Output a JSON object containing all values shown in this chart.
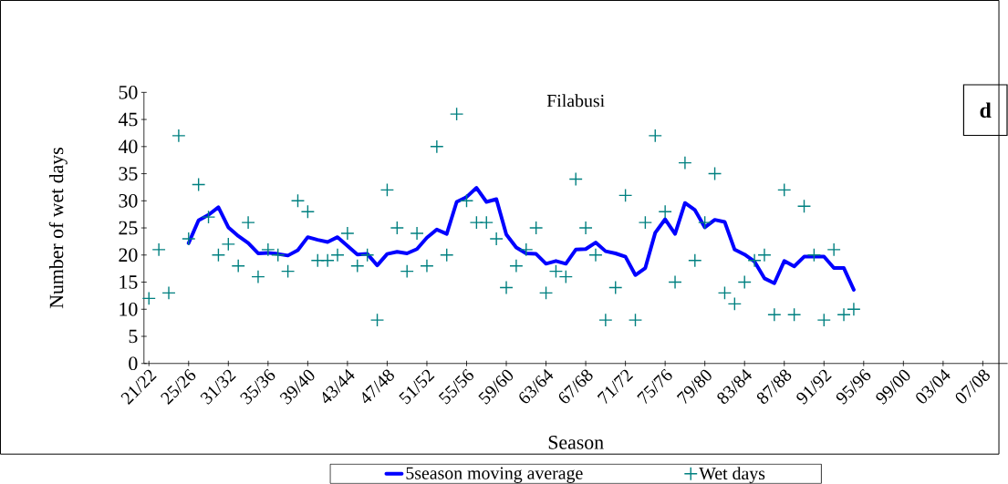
{
  "chart_data": {
    "type": "line",
    "title": "Filabusi",
    "xlabel": "Season",
    "ylabel": "Number of wet days",
    "categories": [
      "21/22",
      null,
      null,
      null,
      "25/26",
      null,
      null,
      null,
      "31/32",
      null,
      null,
      null,
      "35/36",
      null,
      null,
      null,
      "39/40",
      null,
      null,
      null,
      "43/44",
      null,
      null,
      null,
      "47/48",
      null,
      null,
      null,
      "51/52",
      null,
      null,
      null,
      "55/56",
      null,
      null,
      null,
      "59/60",
      null,
      null,
      null,
      "63/64",
      null,
      null,
      null,
      "67/68",
      null,
      null,
      null,
      "71/72",
      null,
      null,
      null,
      "75/76",
      null,
      null,
      null,
      "79/80",
      null,
      null,
      null,
      "83/84",
      null,
      null,
      null,
      "87/88",
      null,
      null,
      null,
      "91/92",
      null,
      null,
      null,
      "95/96",
      null,
      null,
      null,
      "99/00",
      null,
      null,
      null,
      "03/04",
      null,
      null,
      null,
      "07/08",
      null,
      null
    ],
    "series": [
      {
        "name": "5season moving average",
        "type": "line",
        "color": "#0000ff",
        "values": [
          null,
          null,
          null,
          null,
          22.2,
          26.4,
          27.4,
          28.8,
          25.1,
          23.5,
          22.2,
          20.3,
          20.4,
          20.2,
          19.9,
          20.9,
          23.3,
          22.8,
          22.4,
          23.3,
          21.7,
          20.1,
          20.2,
          18.1,
          20.2,
          20.6,
          20.3,
          21.1,
          23.2,
          24.7,
          23.9,
          29.8,
          30.7,
          32.4,
          29.8,
          30.3,
          23.8,
          21.4,
          20.3,
          20.2,
          18.4,
          18.9,
          18.4,
          21.0,
          21.1,
          22.3,
          20.7,
          20.3,
          19.7,
          16.3,
          17.6,
          24.1,
          26.6,
          23.9,
          29.6,
          28.3,
          25.1,
          26.5,
          26.1,
          21.0,
          20.1,
          18.8,
          15.7,
          14.8,
          18.9,
          17.9,
          19.7,
          19.7,
          19.7,
          17.6,
          17.6,
          13.6,
          null,
          null,
          null,
          null,
          null,
          null,
          null,
          null,
          null,
          null,
          null,
          null,
          null,
          null,
          null
        ]
      },
      {
        "name": "Wet days",
        "type": "scatter",
        "color": "#008080",
        "marker": "cross",
        "values": [
          12,
          21,
          13,
          42,
          23,
          33,
          27,
          20,
          22,
          18,
          26,
          16,
          21,
          20,
          17,
          30,
          28,
          19,
          19,
          20,
          24,
          18,
          20,
          8,
          32,
          25,
          17,
          24,
          18,
          40,
          20,
          46,
          30,
          26,
          26,
          23,
          14,
          18,
          21,
          25,
          13,
          17,
          16,
          34,
          25,
          20,
          8,
          14,
          31,
          8,
          26,
          42,
          28,
          15,
          37,
          19,
          26,
          35,
          13,
          11,
          15,
          19,
          20,
          9,
          32,
          9,
          29,
          20,
          8,
          21,
          9,
          10,
          null,
          null,
          null,
          null,
          null,
          null,
          null,
          null,
          null,
          null,
          null,
          null,
          null,
          null,
          null
        ]
      }
    ],
    "ylim": [
      0,
      50
    ],
    "yticks": [
      0,
      5,
      10,
      15,
      20,
      25,
      30,
      35,
      40,
      45,
      50
    ],
    "grid": false,
    "legend": "bottom",
    "annotations": [
      "d"
    ]
  }
}
